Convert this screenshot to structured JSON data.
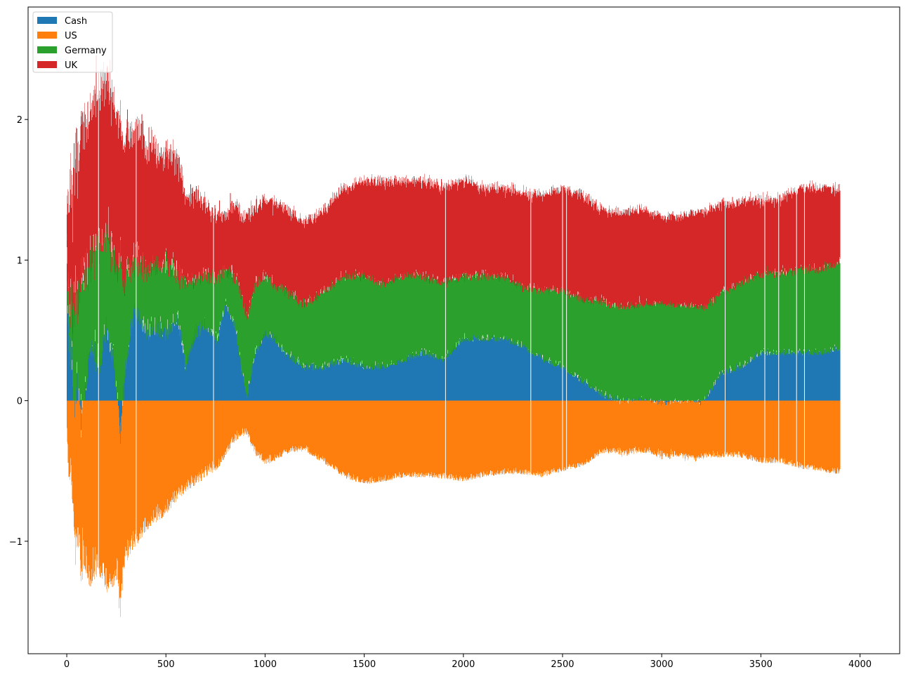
{
  "chart_data": {
    "type": "bar",
    "title": "",
    "xlabel": "",
    "ylabel": "",
    "xlim": [
      -195,
      4200
    ],
    "ylim": [
      -1.8,
      2.8
    ],
    "x_ticks": [
      0,
      500,
      1000,
      1500,
      2000,
      2500,
      3000,
      3500,
      4000
    ],
    "x_tick_labels": [
      "0",
      "500",
      "1000",
      "1500",
      "2000",
      "2500",
      "3000",
      "3500",
      "4000"
    ],
    "y_ticks": [
      -1,
      0,
      1,
      2
    ],
    "y_tick_labels": [
      "−1",
      "0",
      "1",
      "2"
    ],
    "grid": false,
    "legend_position": "top-left",
    "stacking": "stacked bars; positive values stack upward from 0, negative values stack downward from 0",
    "n_points": 3900,
    "series": [
      {
        "name": "Cash",
        "color": "#1f77b4",
        "envelope": {
          "x": [
            0,
            10,
            25,
            40,
            55,
            70,
            90,
            120,
            160,
            200,
            240,
            270,
            300,
            350,
            400,
            450,
            500,
            560,
            600,
            650,
            700,
            760,
            800,
            850,
            880,
            910,
            950,
            1000,
            1050,
            1100,
            1200,
            1300,
            1400,
            1500,
            1600,
            1700,
            1800,
            1900,
            2000,
            2100,
            2200,
            2300,
            2400,
            2500,
            2600,
            2700,
            2800,
            2900,
            3000,
            3100,
            3200,
            3300,
            3400,
            3500,
            3600,
            3700,
            3800,
            3900
          ],
          "values": [
            0.9,
            0.55,
            0.35,
            -0.1,
            0.25,
            -0.15,
            0.1,
            0.5,
            0.3,
            0.55,
            0.35,
            -0.3,
            0.35,
            0.7,
            0.5,
            0.55,
            0.5,
            0.6,
            0.25,
            0.5,
            0.55,
            0.45,
            0.7,
            0.55,
            0.25,
            0.05,
            0.35,
            0.5,
            0.45,
            0.35,
            0.25,
            0.25,
            0.3,
            0.25,
            0.25,
            0.3,
            0.35,
            0.3,
            0.45,
            0.45,
            0.45,
            0.4,
            0.3,
            0.25,
            0.15,
            0.05,
            0.0,
            0.02,
            -0.02,
            0.0,
            -0.02,
            0.2,
            0.25,
            0.35,
            0.35,
            0.35,
            0.35,
            0.38
          ]
        }
      },
      {
        "name": "US",
        "color": "#ff7f0e",
        "envelope": {
          "x": [
            0,
            10,
            25,
            40,
            55,
            70,
            90,
            120,
            160,
            200,
            240,
            270,
            300,
            350,
            400,
            450,
            500,
            560,
            600,
            650,
            700,
            760,
            800,
            850,
            880,
            910,
            950,
            1000,
            1050,
            1100,
            1200,
            1300,
            1400,
            1500,
            1600,
            1700,
            1800,
            1900,
            2000,
            2100,
            2200,
            2300,
            2400,
            2500,
            2600,
            2700,
            2800,
            2900,
            3000,
            3100,
            3200,
            3300,
            3400,
            3500,
            3600,
            3700,
            3800,
            3900
          ],
          "values": [
            -0.2,
            -0.35,
            -0.5,
            -0.8,
            -0.9,
            -0.95,
            -1.05,
            -1.2,
            -1.1,
            -1.25,
            -1.2,
            -1.15,
            -1.05,
            -0.95,
            -0.85,
            -0.8,
            -0.75,
            -0.65,
            -0.6,
            -0.55,
            -0.5,
            -0.45,
            -0.35,
            -0.25,
            -0.22,
            -0.22,
            -0.35,
            -0.42,
            -0.4,
            -0.35,
            -0.33,
            -0.42,
            -0.52,
            -0.57,
            -0.55,
            -0.52,
            -0.52,
            -0.53,
            -0.55,
            -0.52,
            -0.5,
            -0.5,
            -0.52,
            -0.48,
            -0.45,
            -0.35,
            -0.35,
            -0.35,
            -0.35,
            -0.37,
            -0.38,
            -0.38,
            -0.38,
            -0.42,
            -0.42,
            -0.46,
            -0.48,
            -0.5
          ]
        }
      },
      {
        "name": "Germany",
        "color": "#2ca02c",
        "envelope": {
          "x": [
            0,
            10,
            25,
            40,
            55,
            70,
            90,
            120,
            160,
            200,
            240,
            270,
            300,
            350,
            400,
            450,
            500,
            560,
            600,
            650,
            700,
            760,
            800,
            850,
            880,
            910,
            950,
            1000,
            1050,
            1100,
            1200,
            1300,
            1400,
            1500,
            1600,
            1700,
            1800,
            1900,
            2000,
            2100,
            2200,
            2300,
            2400,
            2500,
            2600,
            2700,
            2800,
            2900,
            3000,
            3100,
            3200,
            3300,
            3400,
            3500,
            3600,
            3700,
            3800,
            3900
          ],
          "values": [
            0.08,
            0.3,
            0.4,
            0.75,
            0.5,
            0.95,
            0.85,
            0.6,
            0.9,
            0.7,
            0.75,
            1.1,
            0.6,
            0.35,
            0.5,
            0.45,
            0.5,
            0.35,
            0.6,
            0.4,
            0.35,
            0.45,
            0.25,
            0.35,
            0.55,
            0.55,
            0.5,
            0.4,
            0.4,
            0.45,
            0.45,
            0.55,
            0.6,
            0.65,
            0.6,
            0.6,
            0.55,
            0.55,
            0.45,
            0.45,
            0.45,
            0.42,
            0.5,
            0.55,
            0.58,
            0.67,
            0.67,
            0.68,
            0.7,
            0.68,
            0.67,
            0.58,
            0.6,
            0.57,
            0.57,
            0.6,
            0.6,
            0.62
          ]
        }
      },
      {
        "name": "UK",
        "color": "#d62728",
        "envelope": {
          "x": [
            0,
            10,
            25,
            40,
            55,
            70,
            90,
            120,
            160,
            200,
            240,
            270,
            300,
            350,
            400,
            450,
            500,
            560,
            600,
            650,
            700,
            760,
            800,
            850,
            880,
            910,
            950,
            1000,
            1050,
            1100,
            1200,
            1300,
            1400,
            1500,
            1600,
            1700,
            1800,
            1900,
            2000,
            2100,
            2200,
            2300,
            2400,
            2500,
            2600,
            2700,
            2800,
            2900,
            3000,
            3100,
            3200,
            3300,
            3400,
            3500,
            3600,
            3700,
            3800,
            3900
          ],
          "values": [
            0.2,
            0.45,
            0.7,
            0.8,
            0.85,
            0.9,
            0.95,
            0.9,
            0.95,
            1.0,
            0.95,
            0.9,
            0.9,
            0.85,
            0.8,
            0.75,
            0.7,
            0.75,
            0.55,
            0.55,
            0.45,
            0.4,
            0.35,
            0.5,
            0.5,
            0.7,
            0.5,
            0.5,
            0.55,
            0.55,
            0.55,
            0.55,
            0.6,
            0.65,
            0.7,
            0.65,
            0.65,
            0.65,
            0.65,
            0.6,
            0.6,
            0.65,
            0.65,
            0.7,
            0.72,
            0.62,
            0.65,
            0.65,
            0.6,
            0.62,
            0.67,
            0.6,
            0.55,
            0.5,
            0.5,
            0.55,
            0.55,
            0.5
          ]
        }
      }
    ]
  }
}
